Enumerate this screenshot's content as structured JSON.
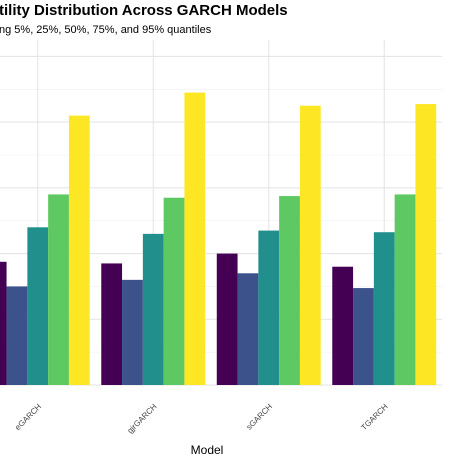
{
  "chart_data": {
    "type": "bar",
    "title": "tility Distribution Across GARCH Models",
    "subtitle": "ng 5%, 25%, 50%, 75%, and 95% quantiles",
    "xlabel": "Model",
    "ylabel": "",
    "categories": [
      "eGARCH",
      "gjrGARCH",
      "sGARCH",
      "TGARCH"
    ],
    "ylim": [
      0,
      1.05
    ],
    "grid": true,
    "legend": "none",
    "series": [
      {
        "color": "#440154",
        "values": [
          0.375,
          0.37,
          0.4,
          0.36
        ]
      },
      {
        "color": "#3b528b",
        "values": [
          0.3,
          0.32,
          0.34,
          0.295
        ]
      },
      {
        "color": "#21908c",
        "values": [
          0.48,
          0.46,
          0.47,
          0.465
        ]
      },
      {
        "color": "#5ec962",
        "values": [
          0.58,
          0.57,
          0.575,
          0.58
        ]
      },
      {
        "color": "#fde725",
        "values": [
          0.82,
          0.89,
          0.85,
          0.855
        ]
      }
    ]
  }
}
